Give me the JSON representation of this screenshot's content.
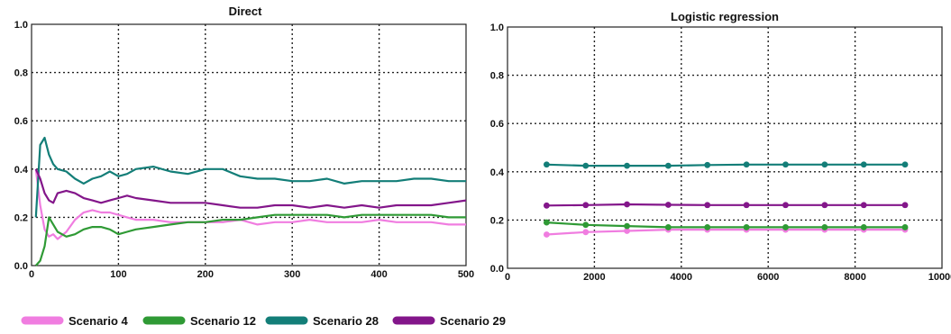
{
  "legend": [
    {
      "name": "Scenario 4",
      "color": "#f07de0"
    },
    {
      "name": "Scenario 12",
      "color": "#2f9a35"
    },
    {
      "name": "Scenario 28",
      "color": "#137e78"
    },
    {
      "name": "Scenario 29",
      "color": "#83168a"
    }
  ],
  "chart_data": [
    {
      "type": "line",
      "title": "Direct",
      "xlim": [
        0,
        500
      ],
      "ylim": [
        0,
        1
      ],
      "x_ticks": [
        "0",
        "100",
        "200",
        "300",
        "400",
        "500"
      ],
      "y_ticks": [
        "0.0",
        "0.2",
        "0.4",
        "0.6",
        "0.8",
        "1.0"
      ],
      "grid": true,
      "legend_position": "bottom",
      "series": [
        {
          "name": "Scenario 4",
          "color": "#f07de0",
          "x": [
            5,
            10,
            15,
            20,
            25,
            30,
            40,
            50,
            60,
            70,
            80,
            90,
            100,
            110,
            120,
            140,
            160,
            180,
            200,
            220,
            240,
            260,
            280,
            300,
            320,
            340,
            360,
            380,
            400,
            420,
            440,
            460,
            480,
            500
          ],
          "y": [
            0.4,
            0.25,
            0.15,
            0.12,
            0.13,
            0.11,
            0.14,
            0.19,
            0.22,
            0.23,
            0.22,
            0.22,
            0.21,
            0.2,
            0.19,
            0.19,
            0.18,
            0.18,
            0.18,
            0.18,
            0.19,
            0.17,
            0.18,
            0.18,
            0.19,
            0.18,
            0.18,
            0.18,
            0.19,
            0.18,
            0.18,
            0.18,
            0.17,
            0.17
          ]
        },
        {
          "name": "Scenario 12",
          "color": "#2f9a35",
          "x": [
            5,
            10,
            15,
            20,
            25,
            30,
            40,
            50,
            60,
            70,
            80,
            90,
            100,
            110,
            120,
            140,
            160,
            180,
            200,
            220,
            240,
            260,
            280,
            300,
            320,
            340,
            360,
            380,
            400,
            420,
            440,
            460,
            480,
            500
          ],
          "y": [
            0.0,
            0.02,
            0.08,
            0.2,
            0.17,
            0.14,
            0.12,
            0.13,
            0.15,
            0.16,
            0.16,
            0.15,
            0.13,
            0.14,
            0.15,
            0.16,
            0.17,
            0.18,
            0.18,
            0.19,
            0.19,
            0.2,
            0.21,
            0.21,
            0.21,
            0.21,
            0.2,
            0.21,
            0.21,
            0.21,
            0.21,
            0.21,
            0.2,
            0.2
          ]
        },
        {
          "name": "Scenario 28",
          "color": "#137e78",
          "x": [
            5,
            10,
            15,
            20,
            25,
            30,
            40,
            50,
            60,
            70,
            80,
            90,
            100,
            110,
            120,
            140,
            160,
            180,
            200,
            220,
            240,
            260,
            280,
            300,
            320,
            340,
            360,
            380,
            400,
            420,
            440,
            460,
            480,
            500
          ],
          "y": [
            0.2,
            0.5,
            0.53,
            0.46,
            0.42,
            0.4,
            0.39,
            0.36,
            0.34,
            0.36,
            0.37,
            0.39,
            0.37,
            0.38,
            0.4,
            0.41,
            0.39,
            0.38,
            0.4,
            0.4,
            0.37,
            0.36,
            0.36,
            0.35,
            0.35,
            0.36,
            0.34,
            0.35,
            0.35,
            0.35,
            0.36,
            0.36,
            0.35,
            0.35
          ]
        },
        {
          "name": "Scenario 29",
          "color": "#83168a",
          "x": [
            5,
            10,
            15,
            20,
            25,
            30,
            40,
            50,
            60,
            70,
            80,
            90,
            100,
            110,
            120,
            140,
            160,
            180,
            200,
            220,
            240,
            260,
            280,
            300,
            320,
            340,
            360,
            380,
            400,
            420,
            440,
            460,
            480,
            500
          ],
          "y": [
            0.4,
            0.36,
            0.3,
            0.27,
            0.26,
            0.3,
            0.31,
            0.3,
            0.28,
            0.27,
            0.26,
            0.27,
            0.28,
            0.29,
            0.28,
            0.27,
            0.26,
            0.26,
            0.26,
            0.25,
            0.24,
            0.24,
            0.25,
            0.25,
            0.24,
            0.25,
            0.24,
            0.25,
            0.24,
            0.25,
            0.25,
            0.25,
            0.26,
            0.27
          ]
        }
      ]
    },
    {
      "type": "line",
      "title": "Logistic regression",
      "xlim": [
        0,
        10000
      ],
      "ylim": [
        0,
        1
      ],
      "x_ticks": [
        "0",
        "2000",
        "4000",
        "6000",
        "8000",
        "10000"
      ],
      "y_ticks": [
        "0.0",
        "0.2",
        "0.4",
        "0.6",
        "0.8",
        "1.0"
      ],
      "grid": true,
      "legend_position": "bottom",
      "series": [
        {
          "name": "Scenario 4",
          "color": "#f07de0",
          "x": [
            900,
            1800,
            2750,
            3700,
            4600,
            5500,
            6400,
            7300,
            8200,
            9150
          ],
          "y": [
            0.14,
            0.15,
            0.155,
            0.16,
            0.16,
            0.16,
            0.16,
            0.16,
            0.16,
            0.16
          ]
        },
        {
          "name": "Scenario 12",
          "color": "#2f9a35",
          "x": [
            900,
            1800,
            2750,
            3700,
            4600,
            5500,
            6400,
            7300,
            8200,
            9150
          ],
          "y": [
            0.19,
            0.18,
            0.175,
            0.17,
            0.17,
            0.17,
            0.17,
            0.17,
            0.17,
            0.17
          ]
        },
        {
          "name": "Scenario 28",
          "color": "#137e78",
          "x": [
            900,
            1800,
            2750,
            3700,
            4600,
            5500,
            6400,
            7300,
            8200,
            9150
          ],
          "y": [
            0.43,
            0.425,
            0.425,
            0.425,
            0.428,
            0.43,
            0.43,
            0.43,
            0.43,
            0.43
          ]
        },
        {
          "name": "Scenario 29",
          "color": "#83168a",
          "x": [
            900,
            1800,
            2750,
            3700,
            4600,
            5500,
            6400,
            7300,
            8200,
            9150
          ],
          "y": [
            0.26,
            0.262,
            0.265,
            0.263,
            0.262,
            0.262,
            0.262,
            0.262,
            0.262,
            0.262
          ]
        }
      ]
    }
  ]
}
